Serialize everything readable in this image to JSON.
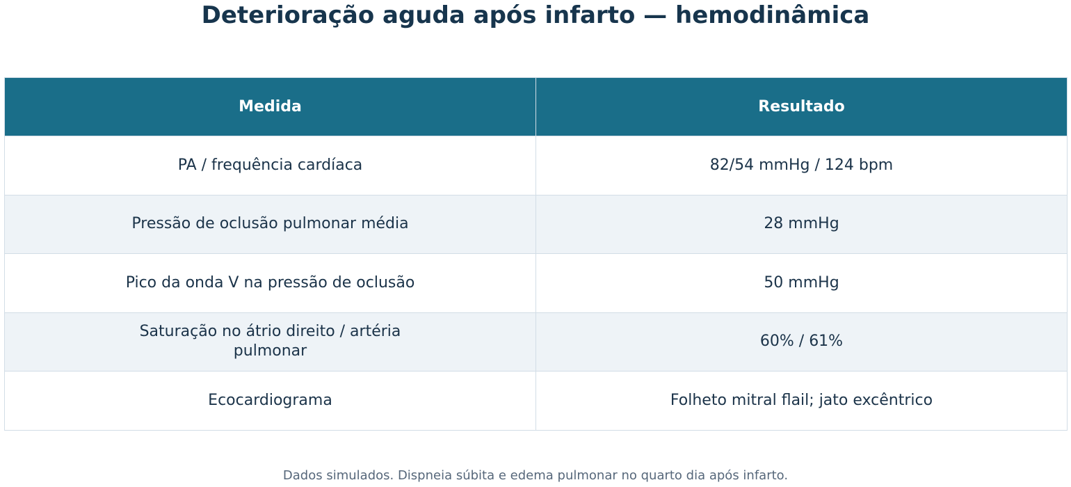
{
  "title": "Deterioração aguda após infarto — hemodinâmica",
  "table": {
    "headers": [
      "Medida",
      "Resultado"
    ],
    "rows": [
      {
        "measure": "PA / frequência cardíaca",
        "result": "82/54 mmHg / 124 bpm"
      },
      {
        "measure": "Pressão de oclusão pulmonar média",
        "result": "28 mmHg"
      },
      {
        "measure": "Pico da onda V na pressão de oclusão",
        "result": "50 mmHg"
      },
      {
        "measure": "Saturação no átrio direito / artéria pulmonar",
        "result": "60% / 61%"
      },
      {
        "measure": "Ecocardiograma",
        "result": "Folheto mitral flail; jato excêntrico"
      }
    ]
  },
  "footnote": "Dados simulados. Dispneia súbita e edema pulmonar no quarto dia após infarto.",
  "colors": {
    "header_bg": "#1a6e89",
    "header_text": "#ffffff",
    "title": "#17354d",
    "body_text": "#1b3349",
    "row_alt_bg": "#eef3f7",
    "grid": "#d2dde6",
    "footnote": "#56677a"
  },
  "chart_data": {
    "type": "table",
    "title": "Deterioração aguda após infarto — hemodinâmica",
    "columns": [
      "Medida",
      "Resultado"
    ],
    "rows": [
      [
        "PA / frequência cardíaca",
        "82/54 mmHg / 124 bpm"
      ],
      [
        "Pressão de oclusão pulmonar média",
        "28 mmHg"
      ],
      [
        "Pico da onda V na pressão de oclusão",
        "50 mmHg"
      ],
      [
        "Saturação no átrio direito / artéria pulmonar",
        "60% / 61%"
      ],
      [
        "Ecocardiograma",
        "Folheto mitral flail; jato excêntrico"
      ]
    ],
    "footnote": "Dados simulados. Dispneia súbita e edema pulmonar no quarto dia após infarto."
  }
}
